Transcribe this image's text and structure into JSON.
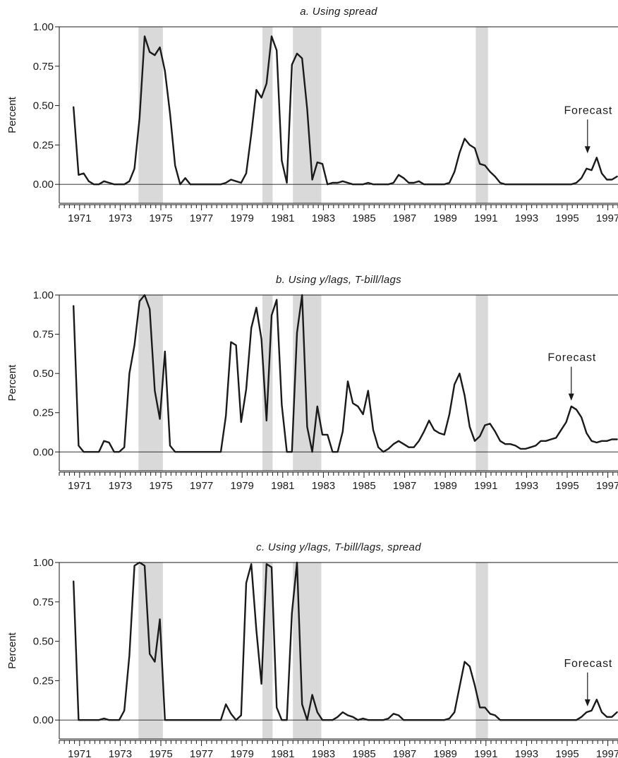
{
  "chart_data": [
    {
      "type": "line",
      "title": "a. Using spread",
      "ylabel": "Percent",
      "xlabel": "",
      "xlim": [
        1970,
        1997.5
      ],
      "ylim": [
        -0.12,
        1.0
      ],
      "yticks": [
        "0.00",
        "0.25",
        "0.50",
        "0.75",
        "1.00"
      ],
      "xticks": [
        "1971",
        "1973",
        "1975",
        "1977",
        "1979",
        "1981",
        "1983",
        "1985",
        "1987",
        "1989",
        "1991",
        "1993",
        "1995",
        "1997"
      ],
      "grid": false,
      "recessions": [
        [
          1973.9,
          1975.1
        ],
        [
          1980.0,
          1980.5
        ],
        [
          1981.5,
          1982.9
        ],
        [
          1990.5,
          1991.1
        ]
      ],
      "annotation": {
        "text": "Forecast",
        "x": 1996.0,
        "y": 0.17
      },
      "series": [
        {
          "x": [
            1970.7,
            1970.95,
            1971.2,
            1971.45,
            1971.7,
            1971.95,
            1972.2,
            1972.45,
            1972.7,
            1972.95,
            1973.2,
            1973.45,
            1973.7,
            1973.95,
            1974.2,
            1974.45,
            1974.7,
            1974.95,
            1975.2,
            1975.45,
            1975.7,
            1975.95,
            1976.2,
            1976.45,
            1976.7,
            1976.95,
            1977.2,
            1977.45,
            1977.7,
            1977.95,
            1978.2,
            1978.45,
            1978.7,
            1978.95,
            1979.2,
            1979.45,
            1979.7,
            1979.95,
            1980.2,
            1980.45,
            1980.7,
            1980.95,
            1981.2,
            1981.45,
            1981.7,
            1981.95,
            1982.2,
            1982.45,
            1982.7,
            1982.95,
            1983.2,
            1983.45,
            1983.7,
            1983.95,
            1984.2,
            1984.45,
            1984.7,
            1984.95,
            1985.2,
            1985.45,
            1985.7,
            1985.95,
            1986.2,
            1986.45,
            1986.7,
            1986.95,
            1987.2,
            1987.45,
            1987.7,
            1987.95,
            1988.2,
            1988.45,
            1988.7,
            1988.95,
            1989.2,
            1989.45,
            1989.7,
            1989.95,
            1990.2,
            1990.45,
            1990.7,
            1990.95,
            1991.2,
            1991.45,
            1991.7,
            1991.95,
            1992.2,
            1992.45,
            1992.7,
            1992.95,
            1993.2,
            1993.45,
            1993.7,
            1993.95,
            1994.2,
            1994.45,
            1994.7,
            1994.95,
            1995.2,
            1995.45,
            1995.7,
            1995.95,
            1996.2,
            1996.45,
            1996.7,
            1996.95,
            1997.2,
            1997.45
          ],
          "y": [
            0.49,
            0.06,
            0.07,
            0.02,
            0.0,
            0.0,
            0.02,
            0.01,
            0.0,
            0.0,
            0.0,
            0.02,
            0.1,
            0.42,
            0.94,
            0.84,
            0.82,
            0.87,
            0.72,
            0.45,
            0.12,
            0.0,
            0.04,
            0.0,
            0.0,
            0.0,
            0.0,
            0.0,
            0.0,
            0.0,
            0.01,
            0.03,
            0.02,
            0.01,
            0.07,
            0.32,
            0.6,
            0.55,
            0.64,
            0.94,
            0.85,
            0.15,
            0.01,
            0.76,
            0.83,
            0.8,
            0.48,
            0.03,
            0.14,
            0.13,
            0.0,
            0.01,
            0.01,
            0.02,
            0.01,
            0.0,
            0.0,
            0.0,
            0.01,
            0.0,
            0.0,
            0.0,
            0.0,
            0.01,
            0.06,
            0.04,
            0.01,
            0.01,
            0.02,
            0.0,
            0.0,
            0.0,
            0.0,
            0.0,
            0.01,
            0.08,
            0.2,
            0.29,
            0.25,
            0.23,
            0.13,
            0.12,
            0.08,
            0.05,
            0.01,
            0.0,
            0.0,
            0.0,
            0.0,
            0.0,
            0.0,
            0.0,
            0.0,
            0.0,
            0.0,
            0.0,
            0.0,
            0.0,
            0.0,
            0.01,
            0.04,
            0.1,
            0.09,
            0.17,
            0.07,
            0.03,
            0.03,
            0.05
          ]
        }
      ]
    },
    {
      "type": "line",
      "title": "b. Using y/lags, T-bill/lags",
      "ylabel": "Percent",
      "xlabel": "",
      "xlim": [
        1970,
        1997.5
      ],
      "ylim": [
        -0.12,
        1.0
      ],
      "yticks": [
        "0.00",
        "0.25",
        "0.50",
        "0.75",
        "1.00"
      ],
      "xticks": [
        "1971",
        "1973",
        "1975",
        "1977",
        "1979",
        "1981",
        "1983",
        "1985",
        "1987",
        "1989",
        "1991",
        "1993",
        "1995",
        "1997"
      ],
      "grid": false,
      "recessions": [
        [
          1973.9,
          1975.1
        ],
        [
          1980.0,
          1980.5
        ],
        [
          1981.5,
          1982.9
        ],
        [
          1990.5,
          1991.1
        ]
      ],
      "annotation": {
        "text": "Forecast",
        "x": 1995.2,
        "y": 0.3
      },
      "series": [
        {
          "x": [
            1970.7,
            1970.95,
            1971.2,
            1971.45,
            1971.7,
            1971.95,
            1972.2,
            1972.45,
            1972.7,
            1972.95,
            1973.2,
            1973.45,
            1973.7,
            1973.95,
            1974.2,
            1974.45,
            1974.7,
            1974.95,
            1975.2,
            1975.45,
            1975.7,
            1975.95,
            1976.2,
            1976.45,
            1976.7,
            1976.95,
            1977.2,
            1977.45,
            1977.7,
            1977.95,
            1978.2,
            1978.45,
            1978.7,
            1978.95,
            1979.2,
            1979.45,
            1979.7,
            1979.95,
            1980.2,
            1980.45,
            1980.7,
            1980.95,
            1981.2,
            1981.45,
            1981.7,
            1981.95,
            1982.2,
            1982.45,
            1982.7,
            1982.95,
            1983.2,
            1983.45,
            1983.7,
            1983.95,
            1984.2,
            1984.45,
            1984.7,
            1984.95,
            1985.2,
            1985.45,
            1985.7,
            1985.95,
            1986.2,
            1986.45,
            1986.7,
            1986.95,
            1987.2,
            1987.45,
            1987.7,
            1987.95,
            1988.2,
            1988.45,
            1988.7,
            1988.95,
            1989.2,
            1989.45,
            1989.7,
            1989.95,
            1990.2,
            1990.45,
            1990.7,
            1990.95,
            1991.2,
            1991.45,
            1991.7,
            1991.95,
            1992.2,
            1992.45,
            1992.7,
            1992.95,
            1993.2,
            1993.45,
            1993.7,
            1993.95,
            1994.2,
            1994.45,
            1994.7,
            1994.95,
            1995.2,
            1995.45,
            1995.7,
            1995.95,
            1996.2,
            1996.45,
            1996.7,
            1996.95,
            1997.2,
            1997.45
          ],
          "y": [
            0.93,
            0.04,
            0.0,
            0.0,
            0.0,
            0.0,
            0.07,
            0.06,
            0.0,
            0.0,
            0.03,
            0.5,
            0.68,
            0.96,
            1.0,
            0.91,
            0.39,
            0.21,
            0.64,
            0.04,
            0.0,
            0.0,
            0.0,
            0.0,
            0.0,
            0.0,
            0.0,
            0.0,
            0.0,
            0.0,
            0.23,
            0.7,
            0.68,
            0.19,
            0.4,
            0.79,
            0.92,
            0.72,
            0.2,
            0.87,
            0.97,
            0.3,
            0.0,
            0.0,
            0.76,
            1.0,
            0.16,
            0.0,
            0.29,
            0.11,
            0.11,
            0.0,
            0.0,
            0.13,
            0.45,
            0.31,
            0.29,
            0.24,
            0.39,
            0.14,
            0.03,
            0.0,
            0.02,
            0.05,
            0.07,
            0.05,
            0.03,
            0.03,
            0.07,
            0.13,
            0.2,
            0.14,
            0.12,
            0.11,
            0.24,
            0.43,
            0.5,
            0.36,
            0.16,
            0.07,
            0.1,
            0.17,
            0.18,
            0.13,
            0.07,
            0.05,
            0.05,
            0.04,
            0.02,
            0.02,
            0.03,
            0.04,
            0.07,
            0.07,
            0.08,
            0.09,
            0.14,
            0.19,
            0.29,
            0.27,
            0.22,
            0.12,
            0.07,
            0.06,
            0.07,
            0.07,
            0.08,
            0.08
          ]
        }
      ]
    },
    {
      "type": "line",
      "title": "c. Using y/lags, T-bill/lags, spread",
      "ylabel": "Percent",
      "xlabel": "",
      "xlim": [
        1970,
        1997.5
      ],
      "ylim": [
        -0.12,
        1.0
      ],
      "yticks": [
        "0.00",
        "0.25",
        "0.50",
        "0.75",
        "1.00"
      ],
      "xticks": [
        "1971",
        "1973",
        "1975",
        "1977",
        "1979",
        "1981",
        "1983",
        "1985",
        "1987",
        "1989",
        "1991",
        "1993",
        "1995",
        "1997"
      ],
      "grid": false,
      "recessions": [
        [
          1973.9,
          1975.1
        ],
        [
          1980.0,
          1980.5
        ],
        [
          1981.5,
          1982.9
        ],
        [
          1990.5,
          1991.1
        ]
      ],
      "annotation": {
        "text": "Forecast",
        "x": 1996.0,
        "y": 0.06
      },
      "series": [
        {
          "x": [
            1970.7,
            1970.95,
            1971.2,
            1971.45,
            1971.7,
            1971.95,
            1972.2,
            1972.45,
            1972.7,
            1972.95,
            1973.2,
            1973.45,
            1973.7,
            1973.95,
            1974.2,
            1974.45,
            1974.7,
            1974.95,
            1975.2,
            1975.45,
            1975.7,
            1975.95,
            1976.2,
            1976.45,
            1976.7,
            1976.95,
            1977.2,
            1977.45,
            1977.7,
            1977.95,
            1978.2,
            1978.45,
            1978.7,
            1978.95,
            1979.2,
            1979.45,
            1979.7,
            1979.95,
            1980.2,
            1980.45,
            1980.7,
            1980.95,
            1981.2,
            1981.45,
            1981.7,
            1981.95,
            1982.2,
            1982.45,
            1982.7,
            1982.95,
            1983.2,
            1983.45,
            1983.7,
            1983.95,
            1984.2,
            1984.45,
            1984.7,
            1984.95,
            1985.2,
            1985.45,
            1985.7,
            1985.95,
            1986.2,
            1986.45,
            1986.7,
            1986.95,
            1987.2,
            1987.45,
            1987.7,
            1987.95,
            1988.2,
            1988.45,
            1988.7,
            1988.95,
            1989.2,
            1989.45,
            1989.7,
            1989.95,
            1990.2,
            1990.45,
            1990.7,
            1990.95,
            1991.2,
            1991.45,
            1991.7,
            1991.95,
            1992.2,
            1992.45,
            1992.7,
            1992.95,
            1993.2,
            1993.45,
            1993.7,
            1993.95,
            1994.2,
            1994.45,
            1994.7,
            1994.95,
            1995.2,
            1995.45,
            1995.7,
            1995.95,
            1996.2,
            1996.45,
            1996.7,
            1996.95,
            1997.2,
            1997.45
          ],
          "y": [
            0.88,
            0.0,
            0.0,
            0.0,
            0.0,
            0.0,
            0.01,
            0.0,
            0.0,
            0.0,
            0.06,
            0.41,
            0.98,
            1.0,
            0.98,
            0.42,
            0.37,
            0.64,
            0.0,
            0.0,
            0.0,
            0.0,
            0.0,
            0.0,
            0.0,
            0.0,
            0.0,
            0.0,
            0.0,
            0.0,
            0.1,
            0.04,
            0.0,
            0.03,
            0.87,
            0.99,
            0.57,
            0.23,
            0.99,
            0.97,
            0.08,
            0.0,
            0.0,
            0.68,
            1.0,
            0.1,
            0.0,
            0.16,
            0.05,
            0.0,
            0.0,
            0.0,
            0.02,
            0.05,
            0.03,
            0.02,
            0.0,
            0.01,
            0.0,
            0.0,
            0.0,
            0.0,
            0.01,
            0.04,
            0.03,
            0.0,
            0.0,
            0.0,
            0.0,
            0.0,
            0.0,
            0.0,
            0.0,
            0.0,
            0.01,
            0.05,
            0.21,
            0.37,
            0.34,
            0.22,
            0.08,
            0.08,
            0.04,
            0.03,
            0.0,
            0.0,
            0.0,
            0.0,
            0.0,
            0.0,
            0.0,
            0.0,
            0.0,
            0.0,
            0.0,
            0.0,
            0.0,
            0.0,
            0.0,
            0.0,
            0.02,
            0.05,
            0.06,
            0.13,
            0.05,
            0.02,
            0.02,
            0.05
          ]
        }
      ]
    }
  ]
}
